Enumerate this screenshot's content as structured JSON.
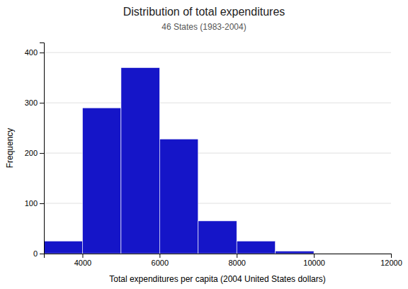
{
  "chart_data": {
    "type": "histogram",
    "title": "Distribution of total expenditures",
    "subtitle": "46 States (1983-2004)",
    "xlabel": "Total expenditures per capita (2004 United States dollars)",
    "ylabel": "Frequency",
    "bins": [
      3000,
      4000,
      5000,
      6000,
      7000,
      8000,
      9000,
      10000,
      11000
    ],
    "values": [
      25,
      290,
      370,
      228,
      65,
      25,
      5,
      0
    ],
    "color": "#1515c8",
    "xlim": [
      3000,
      12000
    ],
    "ylim": [
      0,
      420
    ],
    "xticks": [
      4000,
      6000,
      8000,
      10000,
      12000
    ],
    "yticks": [
      0,
      100,
      200,
      300,
      400
    ],
    "grid": true
  }
}
